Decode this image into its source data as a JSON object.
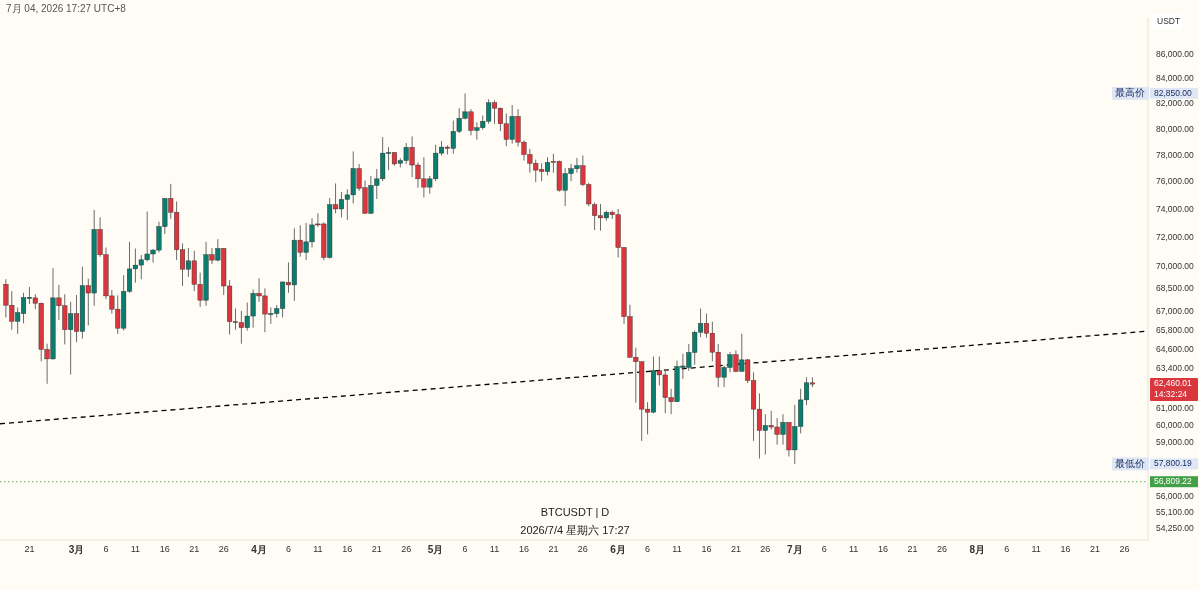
{
  "chart_data": {
    "type": "candlestick",
    "title": "BTCUSDT | D",
    "subtitle": "2026/7/4 星期六 17:27",
    "ylabel": "USDT",
    "log": true,
    "annotations": [
      "7月 04, 2026 17:27 UTC+8",
      "82,850.00",
      "最高价",
      "57,800.19",
      "最低价",
      "62,460.01",
      "14:32:24"
    ],
    "xlim": [
      "2026-02-16",
      "2026-08-30"
    ],
    "ylim": [
      53680,
      89150
    ],
    "xticks": [
      {
        "value": "2026-02-21",
        "label": "21"
      },
      {
        "value": "2026-03-01",
        "label": "3月"
      },
      {
        "value": "2026-03-06",
        "label": "6"
      },
      {
        "value": "2026-03-11",
        "label": "11"
      },
      {
        "value": "2026-03-16",
        "label": "16"
      },
      {
        "value": "2026-03-21",
        "label": "21"
      },
      {
        "value": "2026-03-26",
        "label": "26"
      },
      {
        "value": "2026-04-01",
        "label": "4月"
      },
      {
        "value": "2026-04-06",
        "label": "6"
      },
      {
        "value": "2026-04-11",
        "label": "11"
      },
      {
        "value": "2026-04-16",
        "label": "16"
      },
      {
        "value": "2026-04-21",
        "label": "21"
      },
      {
        "value": "2026-04-26",
        "label": "26"
      },
      {
        "value": "2026-05-01",
        "label": "5月"
      },
      {
        "value": "2026-05-06",
        "label": "6"
      },
      {
        "value": "2026-05-11",
        "label": "11"
      },
      {
        "value": "2026-05-16",
        "label": "16"
      },
      {
        "value": "2026-05-21",
        "label": "21"
      },
      {
        "value": "2026-05-26",
        "label": "26"
      },
      {
        "value": "2026-06-01",
        "label": "6月"
      },
      {
        "value": "2026-06-06",
        "label": "6"
      },
      {
        "value": "2026-06-11",
        "label": "11"
      },
      {
        "value": "2026-06-16",
        "label": "16"
      },
      {
        "value": "2026-06-21",
        "label": "21"
      },
      {
        "value": "2026-06-26",
        "label": "26"
      },
      {
        "value": "2026-07-01",
        "label": "7月"
      },
      {
        "value": "2026-07-06",
        "label": "6"
      },
      {
        "value": "2026-07-11",
        "label": "11"
      },
      {
        "value": "2026-07-16",
        "label": "16"
      },
      {
        "value": "2026-07-21",
        "label": "21"
      },
      {
        "value": "2026-07-26",
        "label": "26"
      },
      {
        "value": "2026-08-01",
        "label": "8月"
      },
      {
        "value": "2026-08-06",
        "label": "6"
      },
      {
        "value": "2026-08-11",
        "label": "11"
      },
      {
        "value": "2026-08-16",
        "label": "16"
      },
      {
        "value": "2026-08-21",
        "label": "21"
      },
      {
        "value": "2026-08-26",
        "label": "26"
      }
    ],
    "yticks": [
      {
        "value": 54250,
        "label": "54,250.00"
      },
      {
        "value": 55100,
        "label": "55,100.00"
      },
      {
        "value": 56000,
        "label": "56,000.00"
      },
      {
        "value": 59000,
        "label": "59,000.00"
      },
      {
        "value": 60000,
        "label": "60,000.00"
      },
      {
        "value": 61000,
        "label": "61,000.00"
      },
      {
        "value": 63400,
        "label": "63,400.00"
      },
      {
        "value": 64600,
        "label": "64,600.00"
      },
      {
        "value": 65800,
        "label": "65,800.00"
      },
      {
        "value": 67000,
        "label": "67,000.00"
      },
      {
        "value": 68500,
        "label": "68,500.00"
      },
      {
        "value": 70000,
        "label": "70,000.00"
      },
      {
        "value": 72000,
        "label": "72,000.00"
      },
      {
        "value": 74000,
        "label": "74,000.00"
      },
      {
        "value": 76000,
        "label": "76,000.00"
      },
      {
        "value": 78000,
        "label": "78,000.00"
      },
      {
        "value": 80000,
        "label": "80,000.00"
      },
      {
        "value": 82000,
        "label": "82,000.00"
      },
      {
        "value": 84000,
        "label": "84,000.00"
      },
      {
        "value": 86000,
        "label": "86,000.00"
      }
    ],
    "ref_lines": [
      {
        "axis": "y",
        "value": 56809.22,
        "label": "56,809.22",
        "color": "#43a047",
        "line_style": "dotted"
      }
    ],
    "series": [
      {
        "type": "line",
        "x": [
          "2026-02-16",
          "2026-08-30"
        ],
        "values": [
          60100,
          65760
        ],
        "color": "#000000",
        "line_style": "dashed"
      }
    ],
    "x": [
      "2026-02-17",
      "2026-02-18",
      "2026-02-19",
      "2026-02-20",
      "2026-02-21",
      "2026-02-22",
      "2026-02-23",
      "2026-02-24",
      "2026-02-25",
      "2026-02-26",
      "2026-02-27",
      "2026-02-28",
      "2026-03-01",
      "2026-03-02",
      "2026-03-03",
      "2026-03-04",
      "2026-03-05",
      "2026-03-06",
      "2026-03-07",
      "2026-03-08",
      "2026-03-09",
      "2026-03-10",
      "2026-03-11",
      "2026-03-12",
      "2026-03-13",
      "2026-03-14",
      "2026-03-15",
      "2026-03-16",
      "2026-03-17",
      "2026-03-18",
      "2026-03-19",
      "2026-03-20",
      "2026-03-21",
      "2026-03-22",
      "2026-03-23",
      "2026-03-24",
      "2026-03-25",
      "2026-03-26",
      "2026-03-27",
      "2026-03-28",
      "2026-03-29",
      "2026-03-30",
      "2026-03-31",
      "2026-04-01",
      "2026-04-02",
      "2026-04-03",
      "2026-04-04",
      "2026-04-05",
      "2026-04-06",
      "2026-04-07",
      "2026-04-08",
      "2026-04-09",
      "2026-04-10",
      "2026-04-11",
      "2026-04-12",
      "2026-04-13",
      "2026-04-14",
      "2026-04-15",
      "2026-04-16",
      "2026-04-17",
      "2026-04-18",
      "2026-04-19",
      "2026-04-20",
      "2026-04-21",
      "2026-04-22",
      "2026-04-23",
      "2026-04-24",
      "2026-04-25",
      "2026-04-26",
      "2026-04-27",
      "2026-04-28",
      "2026-04-29",
      "2026-04-30",
      "2026-05-01",
      "2026-05-02",
      "2026-05-03",
      "2026-05-04",
      "2026-05-05",
      "2026-05-06",
      "2026-05-07",
      "2026-05-08",
      "2026-05-09",
      "2026-05-10",
      "2026-05-11",
      "2026-05-12",
      "2026-05-13",
      "2026-05-14",
      "2026-05-15",
      "2026-05-16",
      "2026-05-17",
      "2026-05-18",
      "2026-05-19",
      "2026-05-20",
      "2026-05-21",
      "2026-05-22",
      "2026-05-23",
      "2026-05-24",
      "2026-05-25",
      "2026-05-26",
      "2026-05-27",
      "2026-05-28",
      "2026-05-29",
      "2026-05-30",
      "2026-05-31",
      "2026-06-01",
      "2026-06-02",
      "2026-06-03",
      "2026-06-04",
      "2026-06-05",
      "2026-06-06",
      "2026-06-07",
      "2026-06-08",
      "2026-06-09",
      "2026-06-10",
      "2026-06-11",
      "2026-06-12",
      "2026-06-13",
      "2026-06-14",
      "2026-06-15",
      "2026-06-16",
      "2026-06-17",
      "2026-06-18",
      "2026-06-19",
      "2026-06-20",
      "2026-06-21",
      "2026-06-22",
      "2026-06-23",
      "2026-06-24",
      "2026-06-25",
      "2026-06-26",
      "2026-06-27",
      "2026-06-28",
      "2026-06-29",
      "2026-06-30",
      "2026-07-01",
      "2026-07-02",
      "2026-07-03",
      "2026-07-04"
    ],
    "ohlc": [
      [
        68820,
        69160,
        66640,
        67440
      ],
      [
        67440,
        68370,
        65850,
        66390
      ],
      [
        66390,
        67290,
        65590,
        66960
      ],
      [
        66890,
        68260,
        66260,
        67940
      ],
      [
        67870,
        68640,
        67510,
        67960
      ],
      [
        67920,
        68160,
        67180,
        67570
      ],
      [
        67570,
        67610,
        63860,
        64600
      ],
      [
        64600,
        64960,
        62480,
        64010
      ],
      [
        64010,
        69910,
        63950,
        67920
      ],
      [
        67920,
        68780,
        66480,
        67400
      ],
      [
        67400,
        68160,
        64920,
        65850
      ],
      [
        65850,
        67660,
        63040,
        66890
      ],
      [
        66890,
        68110,
        65060,
        65740
      ],
      [
        65740,
        70000,
        65280,
        68730
      ],
      [
        68730,
        69200,
        66120,
        68240
      ],
      [
        68240,
        73980,
        67400,
        72590
      ],
      [
        72590,
        73450,
        70690,
        70830
      ],
      [
        70830,
        71330,
        67830,
        68050
      ],
      [
        68050,
        68440,
        66890,
        67180
      ],
      [
        67180,
        68090,
        65590,
        65950
      ],
      [
        65950,
        69440,
        65800,
        68350
      ],
      [
        68350,
        71720,
        68260,
        69860
      ],
      [
        69860,
        71260,
        68930,
        70120
      ],
      [
        70120,
        70810,
        69160,
        70480
      ],
      [
        70480,
        73860,
        70370,
        70880
      ],
      [
        70880,
        71220,
        70300,
        71150
      ],
      [
        71150,
        73140,
        70990,
        72790
      ],
      [
        72790,
        74810,
        72270,
        74810
      ],
      [
        74810,
        75880,
        73340,
        73810
      ],
      [
        73810,
        74590,
        70460,
        71170
      ],
      [
        71170,
        71610,
        68710,
        69840
      ],
      [
        69840,
        71290,
        69320,
        70410
      ],
      [
        70410,
        71100,
        68370,
        68820
      ],
      [
        68820,
        69610,
        67330,
        67770
      ],
      [
        67770,
        71720,
        67400,
        70830
      ],
      [
        70830,
        71290,
        70190,
        70460
      ],
      [
        70460,
        71910,
        70370,
        71260
      ],
      [
        71260,
        71290,
        68110,
        68710
      ],
      [
        68710,
        69100,
        65550,
        66370
      ],
      [
        66370,
        67220,
        65850,
        66310
      ],
      [
        66310,
        67070,
        64960,
        65980
      ],
      [
        65980,
        67610,
        65800,
        66730
      ],
      [
        66730,
        68480,
        65980,
        68220
      ],
      [
        68220,
        69230,
        67660,
        68050
      ],
      [
        68050,
        68550,
        65690,
        66860
      ],
      [
        66830,
        67290,
        66230,
        66890
      ],
      [
        66890,
        67440,
        66640,
        67220
      ],
      [
        67220,
        69000,
        66640,
        68980
      ],
      [
        68960,
        70300,
        68260,
        68780
      ],
      [
        68780,
        72670,
        67720,
        71840
      ],
      [
        71840,
        72880,
        70690,
        70990
      ],
      [
        70990,
        73050,
        70460,
        71720
      ],
      [
        71720,
        73380,
        71330,
        72910
      ],
      [
        72980,
        73740,
        72770,
        72910
      ],
      [
        72980,
        73090,
        70460,
        70640
      ],
      [
        70640,
        74840,
        70570,
        74360
      ],
      [
        74360,
        75910,
        73740,
        74050
      ],
      [
        74050,
        75290,
        73450,
        74740
      ],
      [
        74740,
        75480,
        73260,
        75070
      ],
      [
        75070,
        78310,
        74450,
        77020
      ],
      [
        77020,
        77360,
        75360,
        75550
      ],
      [
        75590,
        76130,
        73700,
        73740
      ],
      [
        73740,
        76460,
        73700,
        75760
      ],
      [
        75760,
        76980,
        74770,
        76250
      ],
      [
        76250,
        79410,
        76080,
        78180
      ],
      [
        78150,
        78640,
        76900,
        78230
      ],
      [
        78230,
        78250,
        77230,
        77360
      ],
      [
        77410,
        77790,
        77100,
        77620
      ],
      [
        77620,
        78950,
        77360,
        78620
      ],
      [
        78620,
        79460,
        76380,
        77280
      ],
      [
        77280,
        77480,
        75590,
        76250
      ],
      [
        76250,
        77870,
        74880,
        75640
      ],
      [
        75640,
        76460,
        75160,
        76250
      ],
      [
        76250,
        78820,
        76080,
        78180
      ],
      [
        78180,
        79100,
        78000,
        78640
      ],
      [
        78640,
        78770,
        78080,
        78540
      ],
      [
        78540,
        80690,
        78130,
        79850
      ],
      [
        79850,
        81670,
        79720,
        80870
      ],
      [
        80870,
        82850,
        80790,
        81380
      ],
      [
        81380,
        81590,
        79540,
        79920
      ],
      [
        79920,
        80560,
        79210,
        80130
      ],
      [
        80130,
        81080,
        79980,
        80640
      ],
      [
        80640,
        82380,
        80440,
        82100
      ],
      [
        82100,
        82300,
        80440,
        81670
      ],
      [
        81670,
        81720,
        79870,
        80440
      ],
      [
        80440,
        81250,
        78710,
        79230
      ],
      [
        79230,
        81920,
        78900,
        81020
      ],
      [
        81020,
        81590,
        78690,
        79020
      ],
      [
        79020,
        79150,
        77620,
        78080
      ],
      [
        78080,
        78520,
        76710,
        77410
      ],
      [
        77410,
        77690,
        76000,
        76900
      ],
      [
        76950,
        77410,
        76080,
        76790
      ],
      [
        76790,
        77870,
        76510,
        77480
      ],
      [
        77560,
        78130,
        76710,
        77480
      ],
      [
        77560,
        77620,
        75310,
        75410
      ],
      [
        75410,
        77050,
        74260,
        76640
      ],
      [
        76640,
        77360,
        76080,
        77000
      ],
      [
        77000,
        77820,
        76710,
        77230
      ],
      [
        77230,
        78000,
        75710,
        75830
      ],
      [
        75830,
        75950,
        74240,
        74410
      ],
      [
        74360,
        74520,
        72550,
        73570
      ],
      [
        73570,
        74410,
        72500,
        73410
      ],
      [
        73410,
        73930,
        73210,
        73810
      ],
      [
        73810,
        73930,
        73340,
        73640
      ],
      [
        73640,
        74050,
        70640,
        71330
      ],
      [
        71330,
        71330,
        66230,
        66700
      ],
      [
        66700,
        67460,
        64080,
        64110
      ],
      [
        64110,
        64710,
        61340,
        63840
      ],
      [
        63840,
        63840,
        59110,
        60960
      ],
      [
        60960,
        61380,
        59480,
        60780
      ],
      [
        60780,
        64160,
        60720,
        63280
      ],
      [
        63280,
        64160,
        62380,
        63020
      ],
      [
        63020,
        63320,
        60720,
        61650
      ],
      [
        61650,
        62180,
        60660,
        61400
      ],
      [
        61400,
        63910,
        61380,
        63540
      ],
      [
        63480,
        64330,
        62780,
        63570
      ],
      [
        63480,
        64950,
        63280,
        64410
      ],
      [
        64410,
        65800,
        63650,
        65690
      ],
      [
        65690,
        67220,
        65380,
        66260
      ],
      [
        66260,
        66890,
        65340,
        65630
      ],
      [
        65630,
        66370,
        63860,
        64430
      ],
      [
        64430,
        64950,
        62280,
        62880
      ],
      [
        62880,
        63590,
        62280,
        63480
      ],
      [
        63480,
        64430,
        63180,
        64270
      ],
      [
        64270,
        64540,
        63180,
        63240
      ],
      [
        63240,
        65590,
        63220,
        63950
      ],
      [
        63950,
        64010,
        62520,
        62680
      ],
      [
        62680,
        63180,
        59110,
        60960
      ],
      [
        60960,
        61900,
        58100,
        59710
      ],
      [
        59710,
        60660,
        58330,
        60000
      ],
      [
        60000,
        60860,
        59760,
        59910
      ],
      [
        59910,
        60430,
        58890,
        59480
      ],
      [
        59480,
        60660,
        58890,
        60180
      ],
      [
        60180,
        60180,
        58220,
        58590
      ],
      [
        58590,
        61210,
        57800.19,
        59940
      ],
      [
        59940,
        62180,
        59540,
        61510
      ],
      [
        61510,
        62880,
        61190,
        62540
      ],
      [
        62540,
        62880,
        62280,
        62460.01
      ]
    ],
    "colors": [
      "#d9363e",
      "#d9363e",
      "#0b7c6e",
      "#0b7c6e",
      "#0b7c6e",
      "#d9363e",
      "#d9363e",
      "#d9363e",
      "#0b7c6e",
      "#d9363e",
      "#d9363e",
      "#0b7c6e",
      "#d9363e",
      "#0b7c6e",
      "#d9363e",
      "#0b7c6e",
      "#d9363e",
      "#d9363e",
      "#d9363e",
      "#d9363e",
      "#0b7c6e",
      "#0b7c6e",
      "#0b7c6e",
      "#0b7c6e",
      "#0b7c6e",
      "#0b7c6e",
      "#0b7c6e",
      "#0b7c6e",
      "#d9363e",
      "#d9363e",
      "#d9363e",
      "#0b7c6e",
      "#d9363e",
      "#d9363e",
      "#0b7c6e",
      "#d9363e",
      "#0b7c6e",
      "#d9363e",
      "#d9363e",
      "#d9363e",
      "#d9363e",
      "#0b7c6e",
      "#0b7c6e",
      "#d9363e",
      "#d9363e",
      "#0b7c6e",
      "#0b7c6e",
      "#0b7c6e",
      "#d9363e",
      "#0b7c6e",
      "#d9363e",
      "#0b7c6e",
      "#0b7c6e",
      "#d9363e",
      "#d9363e",
      "#0b7c6e",
      "#d9363e",
      "#0b7c6e",
      "#0b7c6e",
      "#0b7c6e",
      "#d9363e",
      "#d9363e",
      "#0b7c6e",
      "#0b7c6e",
      "#0b7c6e",
      "#0b7c6e",
      "#d9363e",
      "#0b7c6e",
      "#0b7c6e",
      "#d9363e",
      "#d9363e",
      "#d9363e",
      "#0b7c6e",
      "#0b7c6e",
      "#0b7c6e",
      "#d9363e",
      "#0b7c6e",
      "#0b7c6e",
      "#0b7c6e",
      "#d9363e",
      "#0b7c6e",
      "#0b7c6e",
      "#0b7c6e",
      "#d9363e",
      "#d9363e",
      "#d9363e",
      "#0b7c6e",
      "#d9363e",
      "#d9363e",
      "#d9363e",
      "#d9363e",
      "#d9363e",
      "#0b7c6e",
      "#d9363e",
      "#d9363e",
      "#0b7c6e",
      "#0b7c6e",
      "#0b7c6e",
      "#d9363e",
      "#d9363e",
      "#d9363e",
      "#d9363e",
      "#0b7c6e",
      "#d9363e",
      "#d9363e",
      "#d9363e",
      "#d9363e",
      "#d9363e",
      "#d9363e",
      "#d9363e",
      "#0b7c6e",
      "#d9363e",
      "#d9363e",
      "#d9363e",
      "#0b7c6e",
      "#0b7c6e",
      "#0b7c6e",
      "#0b7c6e",
      "#0b7c6e",
      "#d9363e",
      "#d9363e",
      "#d9363e",
      "#0b7c6e",
      "#0b7c6e",
      "#d9363e",
      "#0b7c6e",
      "#d9363e",
      "#d9363e",
      "#d9363e",
      "#0b7c6e",
      "#d9363e",
      "#d9363e",
      "#0b7c6e",
      "#d9363e",
      "#0b7c6e",
      "#0b7c6e",
      "#0b7c6e",
      "#d9363e"
    ]
  }
}
